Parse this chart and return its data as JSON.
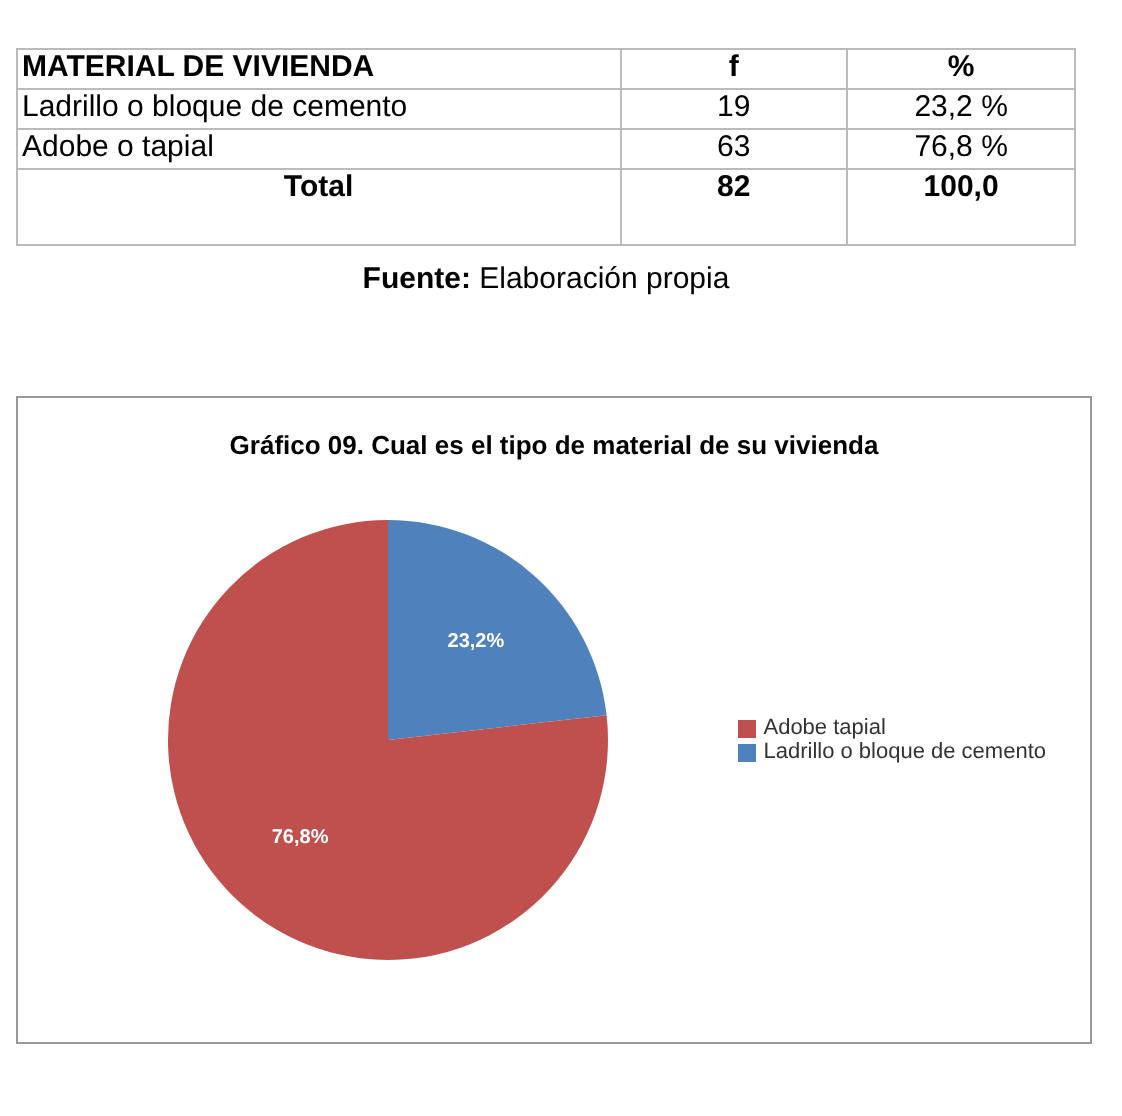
{
  "chart_data": {
    "type": "pie",
    "title": "Gráfico 09. Cual es el tipo de material de su vivienda",
    "categories": [
      "Ladrillo o bloque de cemento",
      "Adobe  tapial"
    ],
    "values": [
      23.2,
      76.8
    ],
    "colors": [
      "#4f81bd",
      "#c0504d"
    ],
    "value_labels": [
      "23,2%",
      "76,8%"
    ],
    "legend": "right",
    "annotations": [
      "MATERIAL DE VIVIENDA",
      "f",
      "%",
      "Ladrillo o bloque de cemento",
      "19",
      "23,2 %",
      "Adobe o tapial",
      "63",
      "76,8 %",
      "Total",
      "82",
      "100,0",
      "Fuente: Elaboración propia"
    ]
  }
}
